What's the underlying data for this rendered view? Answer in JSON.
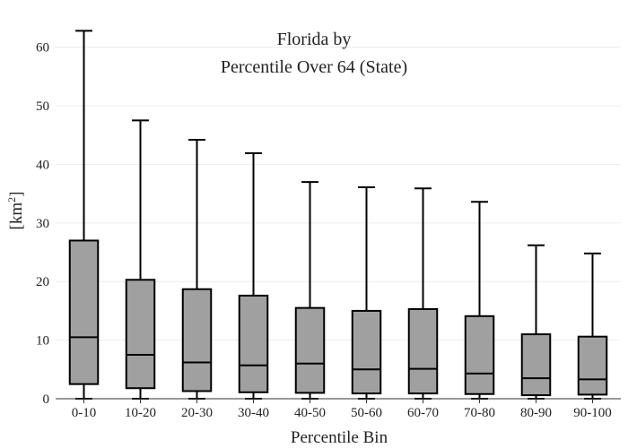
{
  "chart_data": {
    "type": "box",
    "title_line1": "Florida  by",
    "title_line2": "Percentile Over 64 (State)",
    "xlabel": "Percentile Bin",
    "ylabel_base": "[km",
    "ylabel_sup": "2",
    "ylabel_end": "]",
    "ylim": [
      0,
      65
    ],
    "yticks": [
      0,
      10,
      20,
      30,
      40,
      50,
      60
    ],
    "grid": true,
    "categories": [
      "0-10",
      "10-20",
      "20-30",
      "30-40",
      "40-50",
      "50-60",
      "60-70",
      "70-80",
      "80-90",
      "90-100"
    ],
    "boxes": [
      {
        "min": 0,
        "q1": 2.5,
        "median": 10.5,
        "q3": 27.0,
        "max": 62.8
      },
      {
        "min": 0,
        "q1": 1.8,
        "median": 7.5,
        "q3": 20.3,
        "max": 47.5
      },
      {
        "min": 0,
        "q1": 1.3,
        "median": 6.2,
        "q3": 18.7,
        "max": 44.2
      },
      {
        "min": 0,
        "q1": 1.1,
        "median": 5.7,
        "q3": 17.6,
        "max": 41.9
      },
      {
        "min": 0,
        "q1": 1.0,
        "median": 6.0,
        "q3": 15.5,
        "max": 37.0
      },
      {
        "min": 0,
        "q1": 0.9,
        "median": 5.0,
        "q3": 15.0,
        "max": 36.1
      },
      {
        "min": 0,
        "q1": 0.9,
        "median": 5.1,
        "q3": 15.3,
        "max": 35.9
      },
      {
        "min": 0,
        "q1": 0.8,
        "median": 4.3,
        "q3": 14.1,
        "max": 33.6
      },
      {
        "min": 0,
        "q1": 0.6,
        "median": 3.5,
        "q3": 11.0,
        "max": 26.2
      },
      {
        "min": 0,
        "q1": 0.7,
        "median": 3.3,
        "q3": 10.6,
        "max": 24.8
      }
    ],
    "colors": {
      "box_fill": "#a0a0a0",
      "box_stroke": "#000000",
      "grid": "#ececec"
    }
  }
}
